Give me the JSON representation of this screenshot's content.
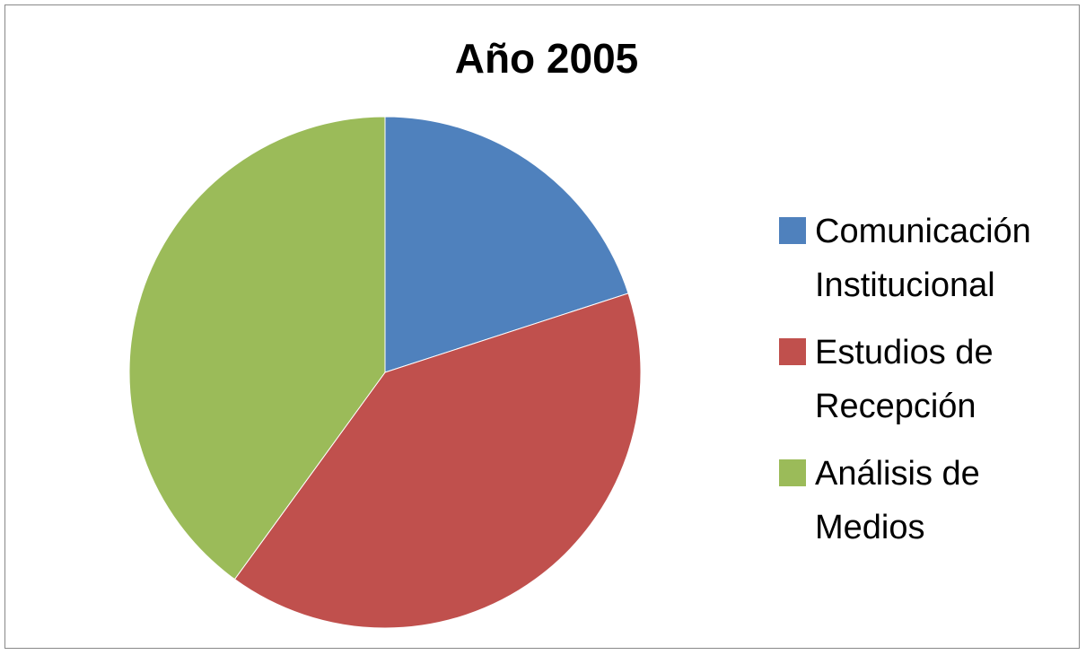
{
  "chart_data": {
    "type": "pie",
    "title": "Año 2005",
    "categories": [
      "Comunicación Institucional",
      "Estudios de Recepción",
      "Análisis de Medios"
    ],
    "values": [
      20,
      40,
      40
    ],
    "colors": [
      "#4f81bd",
      "#c0504d",
      "#9bbb59"
    ],
    "legend": "right"
  }
}
